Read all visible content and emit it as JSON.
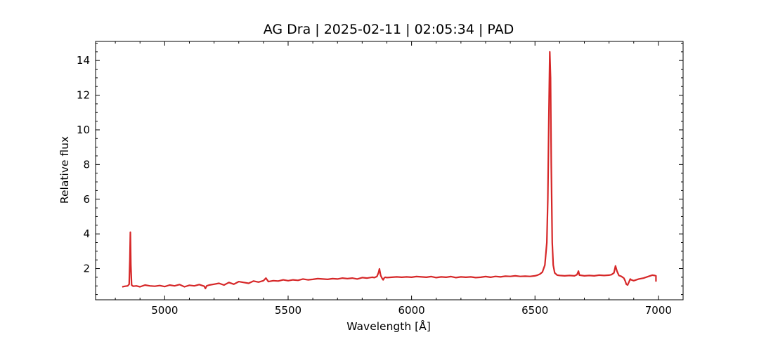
{
  "chart_data": {
    "type": "line",
    "title": "AG Dra | 2025-02-11 | 02:05:34 | PAD",
    "xlabel": "Wavelength [Å]",
    "ylabel": "Relative flux",
    "xlim": [
      4720,
      7100
    ],
    "ylim": [
      0.2,
      15.1
    ],
    "xticks": [
      5000,
      5500,
      6000,
      6500,
      7000
    ],
    "yticks": [
      2,
      4,
      6,
      8,
      10,
      12,
      14
    ],
    "grid": false,
    "legend": "none",
    "series": [
      {
        "color": "#d62728",
        "x": [
          4828,
          4840,
          4850,
          4856,
          4859,
          4861,
          4863,
          4866,
          4872,
          4885,
          4900,
          4920,
          4940,
          4960,
          4980,
          5000,
          5020,
          5040,
          5060,
          5080,
          5100,
          5120,
          5140,
          5160,
          5165,
          5170,
          5180,
          5200,
          5220,
          5240,
          5260,
          5280,
          5300,
          5320,
          5340,
          5360,
          5380,
          5400,
          5410,
          5420,
          5440,
          5460,
          5480,
          5500,
          5520,
          5540,
          5560,
          5580,
          5600,
          5620,
          5640,
          5660,
          5680,
          5700,
          5720,
          5740,
          5760,
          5780,
          5800,
          5820,
          5840,
          5850,
          5860,
          5866,
          5870,
          5875,
          5880,
          5885,
          5890,
          5895,
          5900,
          5920,
          5940,
          5960,
          5980,
          6000,
          6020,
          6040,
          6060,
          6080,
          6100,
          6120,
          6140,
          6160,
          6180,
          6200,
          6220,
          6240,
          6260,
          6280,
          6300,
          6320,
          6340,
          6360,
          6380,
          6400,
          6420,
          6440,
          6460,
          6480,
          6500,
          6510,
          6520,
          6530,
          6540,
          6548,
          6552,
          6556,
          6560,
          6563,
          6566,
          6570,
          6574,
          6580,
          6590,
          6600,
          6620,
          6640,
          6660,
          6670,
          6676,
          6680,
          6690,
          6700,
          6720,
          6740,
          6760,
          6780,
          6800,
          6810,
          6820,
          6826,
          6832,
          6840,
          6850,
          6860,
          6865,
          6870,
          6875,
          6880,
          6886,
          6890,
          6900,
          6920,
          6940,
          6960,
          6975,
          6985,
          6990,
          6990
        ],
        "y": [
          0.95,
          0.98,
          1.0,
          1.1,
          2.5,
          4.1,
          2.2,
          1.05,
          0.98,
          1.0,
          0.95,
          1.05,
          1.0,
          0.98,
          1.02,
          0.96,
          1.05,
          1.0,
          1.08,
          0.95,
          1.04,
          1.0,
          1.08,
          0.98,
          0.85,
          1.0,
          1.05,
          1.1,
          1.15,
          1.05,
          1.2,
          1.1,
          1.25,
          1.2,
          1.15,
          1.28,
          1.22,
          1.3,
          1.45,
          1.25,
          1.3,
          1.28,
          1.35,
          1.3,
          1.35,
          1.32,
          1.4,
          1.35,
          1.38,
          1.42,
          1.4,
          1.38,
          1.42,
          1.4,
          1.45,
          1.42,
          1.45,
          1.4,
          1.48,
          1.45,
          1.5,
          1.48,
          1.55,
          1.75,
          1.98,
          1.6,
          1.45,
          1.35,
          1.48,
          1.5,
          1.48,
          1.5,
          1.52,
          1.5,
          1.52,
          1.5,
          1.54,
          1.52,
          1.5,
          1.54,
          1.48,
          1.52,
          1.5,
          1.54,
          1.48,
          1.52,
          1.5,
          1.52,
          1.48,
          1.5,
          1.54,
          1.5,
          1.55,
          1.52,
          1.56,
          1.55,
          1.58,
          1.55,
          1.56,
          1.55,
          1.58,
          1.62,
          1.68,
          1.8,
          2.2,
          3.5,
          6.0,
          10.5,
          14.5,
          13.0,
          8.0,
          3.5,
          2.2,
          1.75,
          1.62,
          1.6,
          1.58,
          1.6,
          1.58,
          1.65,
          1.85,
          1.62,
          1.6,
          1.58,
          1.6,
          1.58,
          1.62,
          1.6,
          1.62,
          1.65,
          1.75,
          2.15,
          1.85,
          1.6,
          1.55,
          1.45,
          1.3,
          1.1,
          1.05,
          1.2,
          1.4,
          1.35,
          1.3,
          1.4,
          1.45,
          1.55,
          1.62,
          1.6,
          1.58,
          1.25
        ]
      }
    ]
  }
}
